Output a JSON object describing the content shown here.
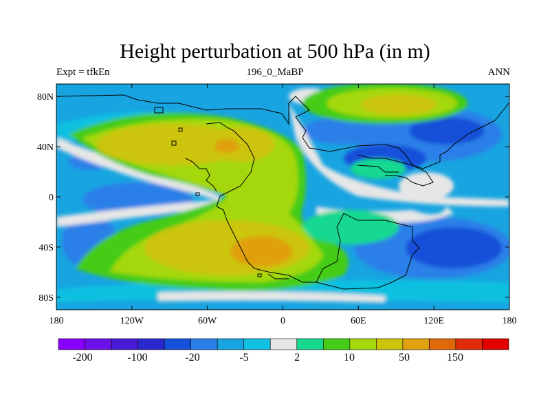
{
  "title": "Height perturbation at 500 hPa (in m)",
  "subtitle_left": "Expt = tfkEn",
  "subtitle_center": "196_0_MaBP",
  "subtitle_right": "ANN",
  "x_ticks": [
    "180",
    "120W",
    "60W",
    "0",
    "60E",
    "120E",
    "180"
  ],
  "y_ticks": [
    "80N",
    "40N",
    "0",
    "40S",
    "80S"
  ],
  "colorbar": {
    "colors": [
      "#8a00ff",
      "#6a10e8",
      "#4a1ad6",
      "#2a28cc",
      "#1450d8",
      "#2a80e8",
      "#18a4e0",
      "#10c0e0",
      "#e6e6e6",
      "#18d890",
      "#44cc18",
      "#a4d808",
      "#ccc408",
      "#e0a010",
      "#e06808",
      "#e02c08",
      "#e00000"
    ],
    "labels": [
      "-200",
      "-100",
      "-20",
      "-5",
      "2",
      "10",
      "50",
      "150"
    ]
  },
  "chart_data": {
    "type": "heatmap",
    "title": "Height perturbation at 500 hPa (in m)",
    "variable": "500 hPa geopotential height perturbation",
    "units": "m",
    "experiment": "tfkEn",
    "period": "196_0_MaBP",
    "season": "ANN",
    "x_ticks": [
      "180",
      "120W",
      "60W",
      "0",
      "60E",
      "120E",
      "180"
    ],
    "y_ticks": [
      "80N",
      "40N",
      "0",
      "40S",
      "80S"
    ],
    "xlim": [
      -180,
      180
    ],
    "ylim": [
      -90,
      90
    ],
    "contour_levels": [
      -200,
      -150,
      -100,
      -50,
      -20,
      -10,
      -5,
      -2,
      2,
      5,
      10,
      20,
      50,
      100,
      150,
      200
    ],
    "colorbar_labels": [
      "-200",
      "-100",
      "-20",
      "-5",
      "2",
      "10",
      "50",
      "150"
    ]
  }
}
